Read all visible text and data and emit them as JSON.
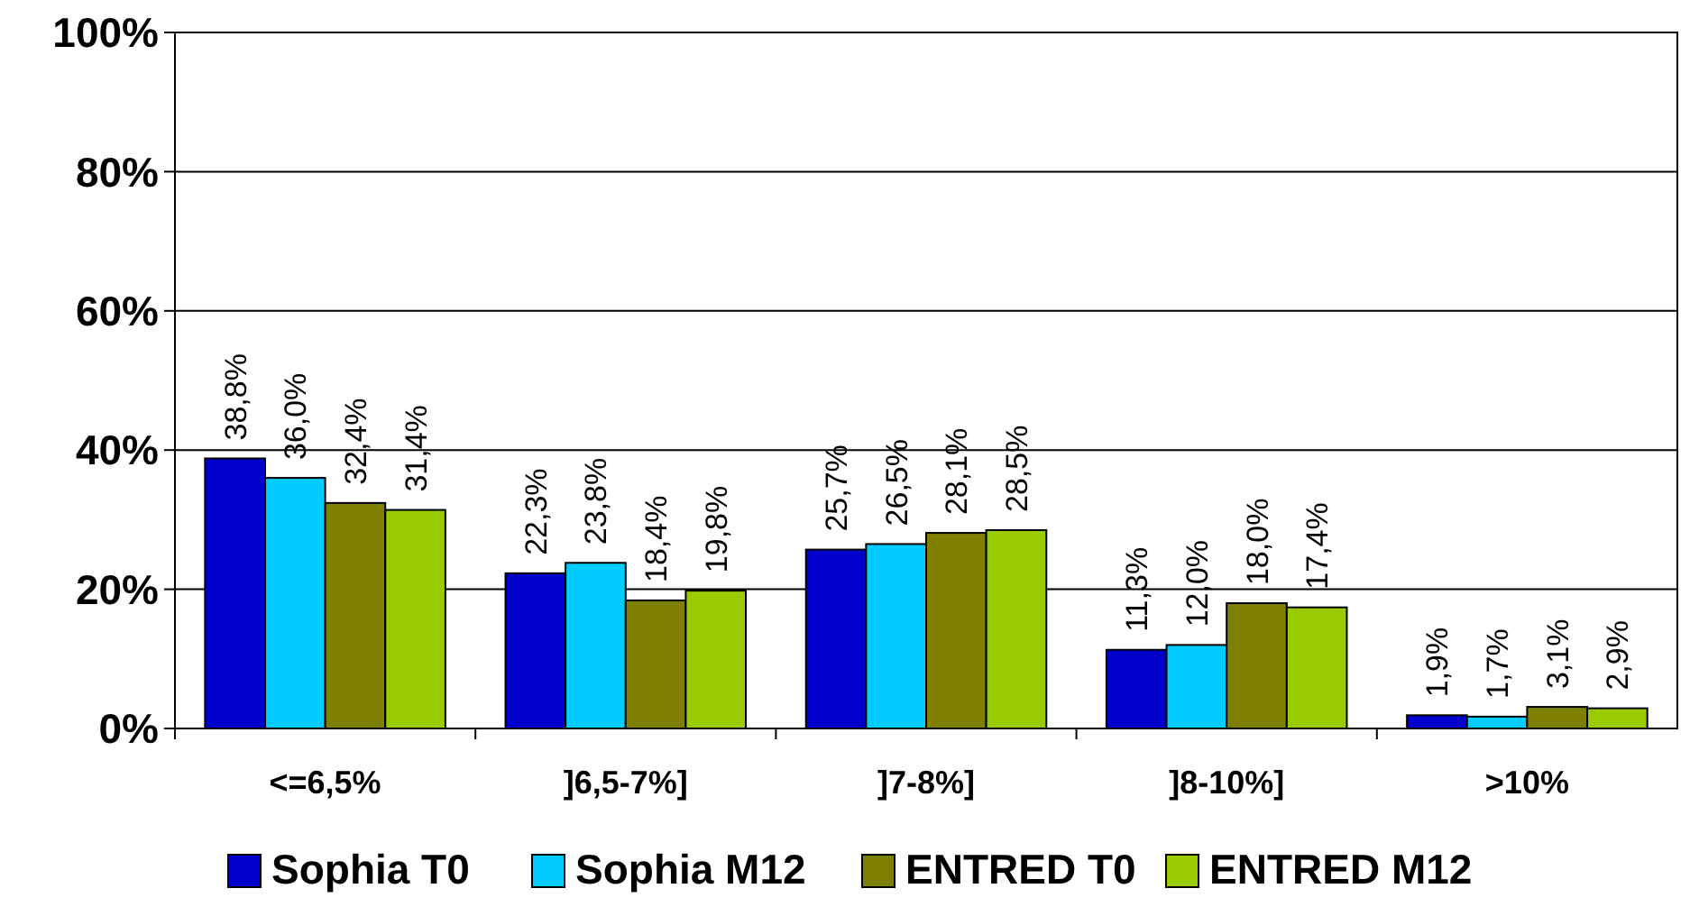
{
  "chart_data": {
    "type": "bar",
    "categories": [
      "<=6,5%",
      "]6,5-7%]",
      "]7-8%]",
      "]8-10%]",
      ">10%"
    ],
    "series": [
      {
        "name": "Sophia T0",
        "color": "#0000cc",
        "values": [
          38.8,
          22.3,
          25.7,
          11.3,
          1.9
        ],
        "value_labels": [
          "38,8%",
          "22,3%",
          "25,7%",
          "11,3%",
          "1,9%"
        ]
      },
      {
        "name": "Sophia M12",
        "color": "#00ccff",
        "values": [
          36.0,
          23.8,
          26.5,
          12.0,
          1.7
        ],
        "value_labels": [
          "36,0%",
          "23,8%",
          "26,5%",
          "12,0%",
          "1,7%"
        ]
      },
      {
        "name": "ENTRED T0",
        "color": "#808000",
        "values": [
          32.4,
          18.4,
          28.1,
          18.0,
          3.1
        ],
        "value_labels": [
          "32,4%",
          "18,4%",
          "28,1%",
          "18,0%",
          "3,1%"
        ]
      },
      {
        "name": "ENTRED M12",
        "color": "#99cc00",
        "values": [
          31.4,
          19.8,
          28.5,
          17.4,
          2.9
        ],
        "value_labels": [
          "31,4%",
          "19,8%",
          "28,5%",
          "17,4%",
          "2,9%"
        ]
      }
    ],
    "ylim": [
      0,
      100
    ],
    "yticks": [
      {
        "value": 0,
        "label": "0%"
      },
      {
        "value": 20,
        "label": "20%"
      },
      {
        "value": 40,
        "label": "40%"
      },
      {
        "value": 60,
        "label": "60%"
      },
      {
        "value": 80,
        "label": "80%"
      },
      {
        "value": 100,
        "label": "100%"
      }
    ],
    "grid": "y",
    "legend": "bottom"
  }
}
